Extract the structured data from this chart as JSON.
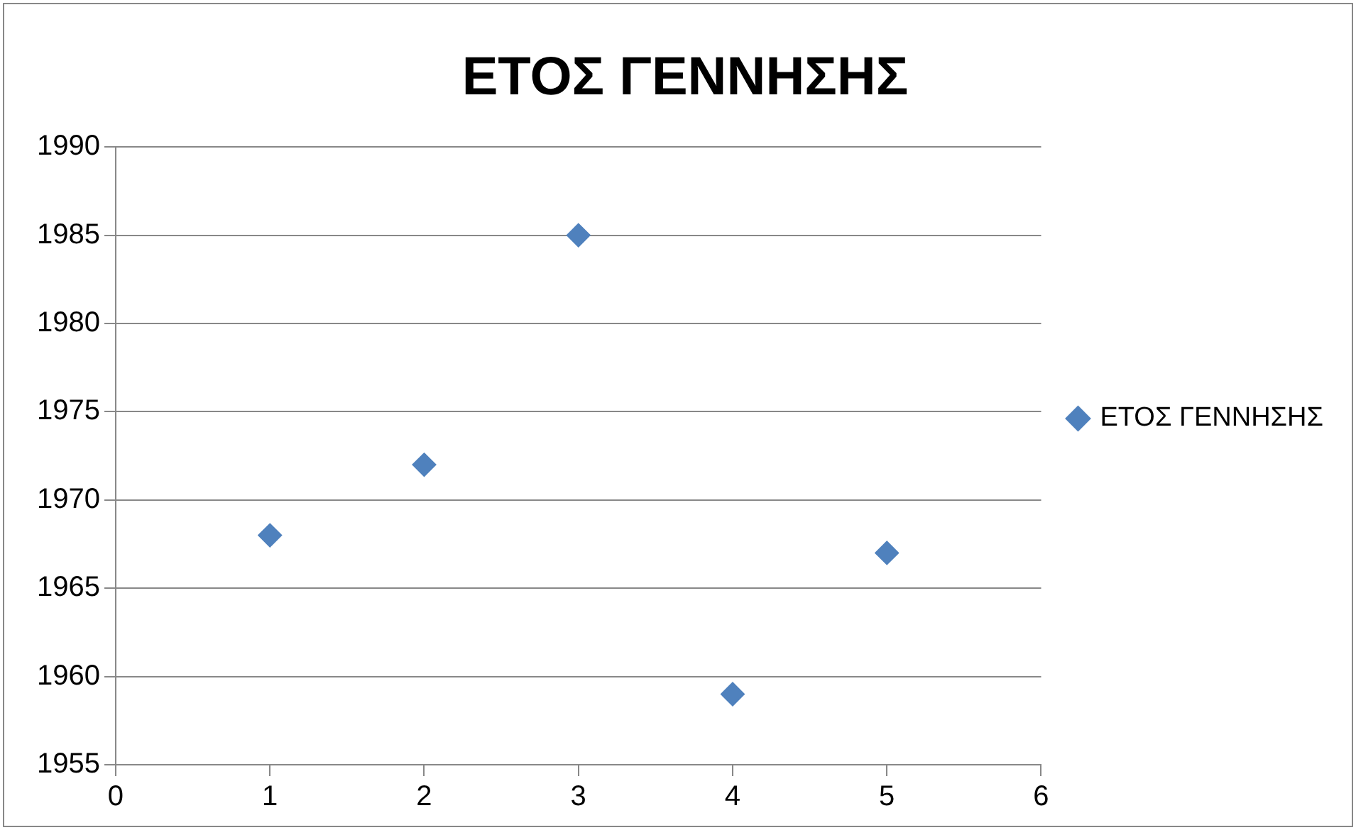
{
  "chart_data": {
    "type": "scatter",
    "title": "ΕΤΟΣ ΓΕΝΝΗΣΗΣ",
    "x": [
      1,
      2,
      3,
      4,
      5
    ],
    "series": [
      {
        "name": "ΕΤΟΣ ΓΕΝΝΗΣΗΣ",
        "color": "#4f81bd",
        "values": [
          1968,
          1972,
          1985,
          1959,
          1967
        ]
      }
    ],
    "xlim": [
      0,
      6
    ],
    "xticks": [
      0,
      1,
      2,
      3,
      4,
      5,
      6
    ],
    "ylim": [
      1955,
      1990
    ],
    "yticks": [
      1955,
      1960,
      1965,
      1970,
      1975,
      1980,
      1985,
      1990
    ],
    "grid": "y",
    "legend": "right",
    "marker": "diamond"
  }
}
